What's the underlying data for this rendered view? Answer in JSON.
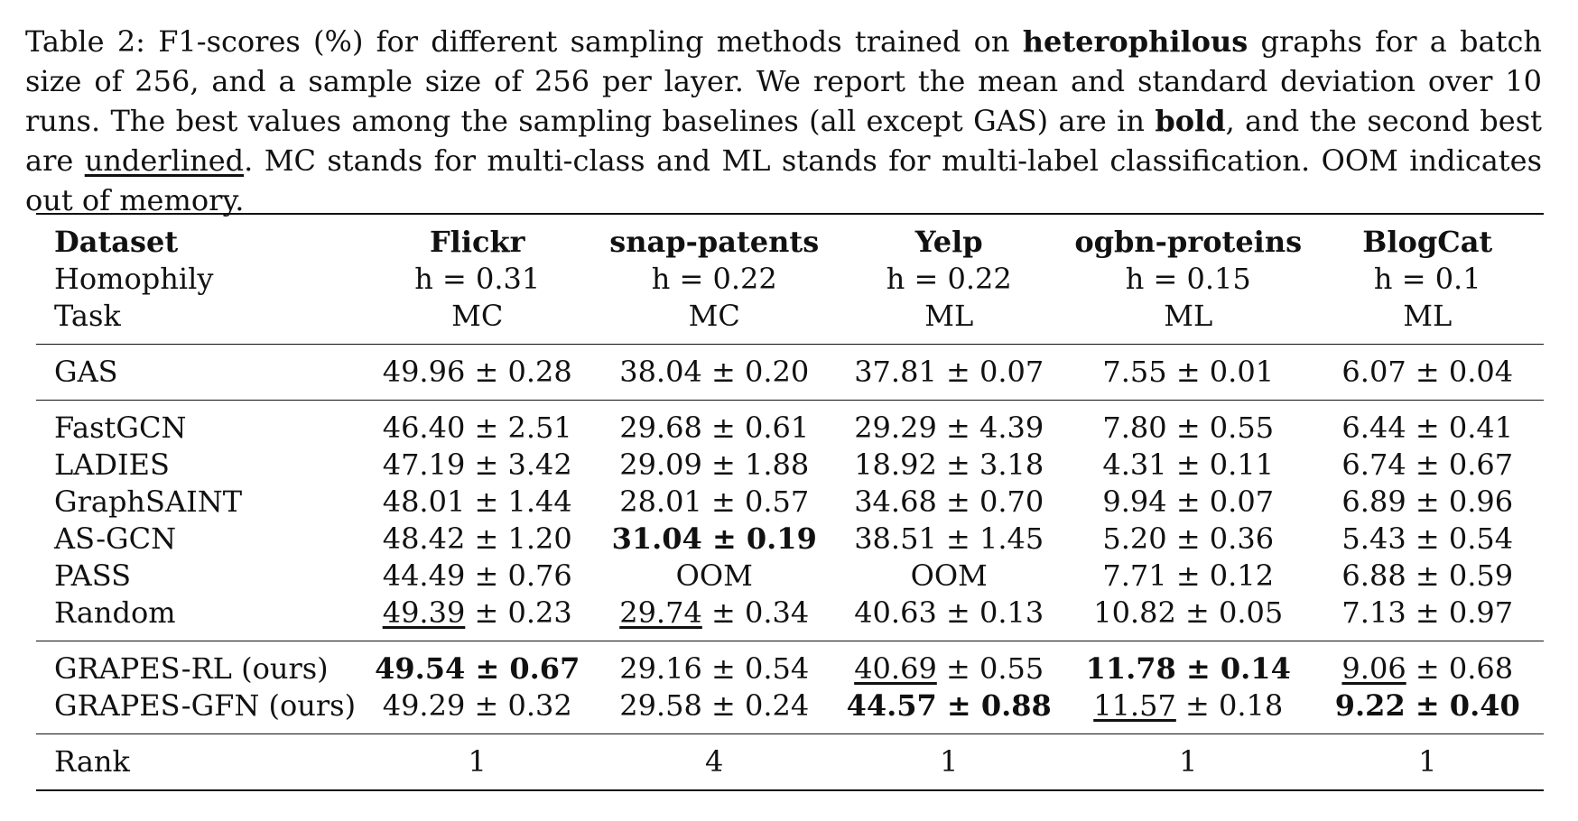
{
  "caption": {
    "p1": "Table 2: F1-scores (%) for different sampling methods trained on ",
    "bold1": "heterophilous",
    "p2": " graphs for a batch size of 256, and a sample size of 256 per layer. We report the mean and standard deviation over 10 runs. The best values among the sampling baselines (all except GAS) are in ",
    "bold2": "bold",
    "p3": ", and the second best are ",
    "underline1": "underlined",
    "p4": ". MC stands for multi-class and ML stands for multi-label classification. OOM indicates out of memory."
  },
  "table": {
    "header": {
      "dataset_label": "Dataset",
      "homophily_label": "Homophily",
      "task_label": "Task",
      "columns": [
        {
          "name": "Flickr",
          "h": "h = 0.31",
          "task": "MC"
        },
        {
          "name": "snap-patents",
          "h": "h = 0.22",
          "task": "MC"
        },
        {
          "name": "Yelp",
          "h": "h = 0.22",
          "task": "ML"
        },
        {
          "name": "ogbn-proteins",
          "h": "h = 0.15",
          "task": "ML"
        },
        {
          "name": "BlogCat",
          "h": "h = 0.1",
          "task": "ML"
        }
      ]
    },
    "gas": {
      "label": "GAS",
      "cells": [
        "49.96 ± 0.28",
        "38.04 ± 0.20",
        "37.81 ± 0.07",
        "7.55 ± 0.01",
        "6.07 ± 0.04"
      ]
    },
    "baselines": [
      {
        "label": "FastGCN",
        "cells": [
          {
            "mean": "46.40",
            "pm": " ± ",
            "std": "2.51"
          },
          {
            "mean": "29.68",
            "pm": " ± ",
            "std": "0.61"
          },
          {
            "mean": "29.29",
            "pm": " ± ",
            "std": "4.39"
          },
          {
            "mean": "7.80",
            "pm": " ± ",
            "std": "0.55"
          },
          {
            "mean": "6.44",
            "pm": " ± ",
            "std": "0.41"
          }
        ]
      },
      {
        "label": "LADIES",
        "cells": [
          {
            "mean": "47.19",
            "pm": " ± ",
            "std": "3.42"
          },
          {
            "mean": "29.09",
            "pm": " ± ",
            "std": "1.88"
          },
          {
            "mean": "18.92",
            "pm": " ± ",
            "std": "3.18"
          },
          {
            "mean": "4.31",
            "pm": " ± ",
            "std": "0.11"
          },
          {
            "mean": "6.74",
            "pm": " ± ",
            "std": "0.67"
          }
        ]
      },
      {
        "label": "GraphSAINT",
        "cells": [
          {
            "mean": "48.01",
            "pm": " ± ",
            "std": "1.44"
          },
          {
            "mean": "28.01",
            "pm": " ± ",
            "std": "0.57"
          },
          {
            "mean": "34.68",
            "pm": " ± ",
            "std": "0.70"
          },
          {
            "mean": "9.94",
            "pm": " ± ",
            "std": "0.07"
          },
          {
            "mean": "6.89",
            "pm": " ± ",
            "std": "0.96"
          }
        ]
      },
      {
        "label": "AS-GCN",
        "cells": [
          {
            "mean": "48.42",
            "pm": " ± ",
            "std": "1.20"
          },
          {
            "mean": "31.04",
            "pm": " ± ",
            "std": "0.19",
            "style": "bold"
          },
          {
            "mean": "38.51",
            "pm": " ± ",
            "std": "1.45"
          },
          {
            "mean": "5.20",
            "pm": " ± ",
            "std": "0.36"
          },
          {
            "mean": "5.43",
            "pm": " ± ",
            "std": "0.54"
          }
        ]
      },
      {
        "label": "PASS",
        "cells": [
          {
            "mean": "44.49",
            "pm": " ± ",
            "std": "0.76"
          },
          {
            "mean": "OOM",
            "pm": "",
            "std": ""
          },
          {
            "mean": "OOM",
            "pm": "",
            "std": ""
          },
          {
            "mean": "7.71",
            "pm": " ± ",
            "std": "0.12"
          },
          {
            "mean": "6.88",
            "pm": " ± ",
            "std": "0.59"
          }
        ]
      },
      {
        "label": "Random",
        "cells": [
          {
            "mean": "49.39",
            "pm": " ± ",
            "std": "0.23",
            "style": "underline"
          },
          {
            "mean": "29.74",
            "pm": " ± ",
            "std": "0.34",
            "style": "underline"
          },
          {
            "mean": "40.63",
            "pm": " ± ",
            "std": "0.13"
          },
          {
            "mean": "10.82",
            "pm": " ± ",
            "std": "0.05"
          },
          {
            "mean": "7.13",
            "pm": " ± ",
            "std": "0.97"
          }
        ]
      }
    ],
    "ours": [
      {
        "label": "GRAPES-RL (ours)",
        "cells": [
          {
            "mean": "49.54",
            "pm": " ± ",
            "std": "0.67",
            "style": "bold"
          },
          {
            "mean": "29.16",
            "pm": " ± ",
            "std": "0.54"
          },
          {
            "mean": "40.69",
            "pm": " ± ",
            "std": "0.55",
            "style": "underline"
          },
          {
            "mean": "11.78",
            "pm": " ± ",
            "std": "0.14",
            "style": "bold"
          },
          {
            "mean": "9.06",
            "pm": " ± ",
            "std": "0.68",
            "style": "underline"
          }
        ]
      },
      {
        "label": "GRAPES-GFN (ours)",
        "cells": [
          {
            "mean": "49.29",
            "pm": " ± ",
            "std": "0.32"
          },
          {
            "mean": "29.58",
            "pm": " ± ",
            "std": "0.24"
          },
          {
            "mean": "44.57",
            "pm": " ± ",
            "std": "0.88",
            "style": "bold"
          },
          {
            "mean": "11.57",
            "pm": " ± ",
            "std": "0.18",
            "style": "underline"
          },
          {
            "mean": "9.22",
            "pm": " ± ",
            "std": "0.40",
            "style": "bold"
          }
        ]
      }
    ],
    "rank": {
      "label": "Rank",
      "cells": [
        "1",
        "4",
        "1",
        "1",
        "1"
      ]
    }
  }
}
